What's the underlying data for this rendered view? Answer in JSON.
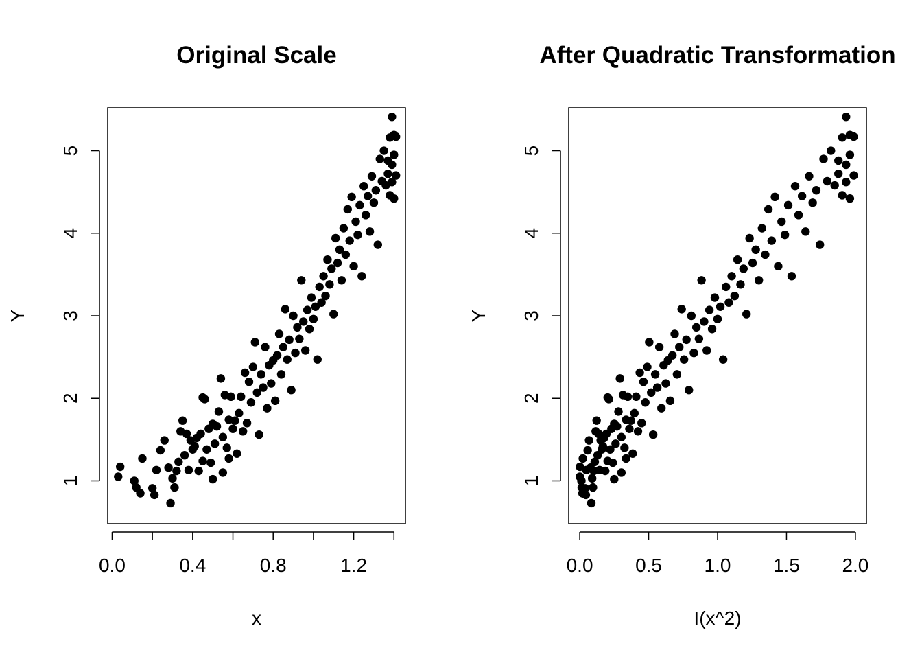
{
  "chart_data": [
    {
      "type": "scatter",
      "title": "Original Scale",
      "xlabel": "x",
      "ylabel": "Y",
      "xlim": [
        0.0,
        1.414
      ],
      "ylim": [
        0.66,
        5.5
      ],
      "xticks": [
        0.0,
        0.2,
        0.4,
        0.6,
        0.8,
        1.0,
        1.2,
        1.4
      ],
      "xtick_labels": [
        "0.0",
        "",
        "0.4",
        "",
        "0.8",
        "",
        "1.2",
        ""
      ],
      "yticks": [
        1,
        2,
        3,
        4,
        5
      ],
      "ytick_labels": [
        "1",
        "2",
        "3",
        "4",
        "5"
      ],
      "grid": false,
      "point_color": "#000000",
      "series": [
        {
          "points": [
            [
              0.03,
              1.05
            ],
            [
              0.04,
              1.17
            ],
            [
              0.11,
              1.0
            ],
            [
              0.12,
              0.92
            ],
            [
              0.14,
              0.85
            ],
            [
              0.15,
              1.27
            ],
            [
              0.2,
              0.91
            ],
            [
              0.21,
              0.83
            ],
            [
              0.22,
              1.13
            ],
            [
              0.24,
              1.37
            ],
            [
              0.26,
              1.49
            ],
            [
              0.28,
              1.16
            ],
            [
              0.29,
              0.73
            ],
            [
              0.3,
              1.03
            ],
            [
              0.31,
              0.92
            ],
            [
              0.32,
              1.12
            ],
            [
              0.33,
              1.23
            ],
            [
              0.34,
              1.6
            ],
            [
              0.35,
              1.73
            ],
            [
              0.36,
              1.31
            ],
            [
              0.37,
              1.57
            ],
            [
              0.38,
              1.13
            ],
            [
              0.39,
              1.49
            ],
            [
              0.4,
              1.38
            ],
            [
              0.41,
              1.42
            ],
            [
              0.42,
              1.52
            ],
            [
              0.43,
              1.12
            ],
            [
              0.44,
              1.57
            ],
            [
              0.45,
              2.01
            ],
            [
              0.45,
              1.24
            ],
            [
              0.46,
              1.99
            ],
            [
              0.47,
              1.38
            ],
            [
              0.48,
              1.63
            ],
            [
              0.49,
              1.22
            ],
            [
              0.5,
              1.69
            ],
            [
              0.5,
              1.02
            ],
            [
              0.51,
              1.45
            ],
            [
              0.52,
              1.66
            ],
            [
              0.53,
              1.84
            ],
            [
              0.54,
              2.24
            ],
            [
              0.55,
              1.53
            ],
            [
              0.55,
              1.1
            ],
            [
              0.56,
              2.04
            ],
            [
              0.57,
              1.4
            ],
            [
              0.58,
              1.74
            ],
            [
              0.58,
              1.27
            ],
            [
              0.59,
              2.02
            ],
            [
              0.6,
              1.63
            ],
            [
              0.61,
              1.73
            ],
            [
              0.62,
              1.33
            ],
            [
              0.63,
              1.82
            ],
            [
              0.64,
              2.02
            ],
            [
              0.65,
              1.6
            ],
            [
              0.66,
              2.31
            ],
            [
              0.67,
              1.7
            ],
            [
              0.68,
              2.2
            ],
            [
              0.69,
              1.95
            ],
            [
              0.7,
              2.38
            ],
            [
              0.71,
              2.68
            ],
            [
              0.72,
              2.07
            ],
            [
              0.73,
              1.56
            ],
            [
              0.74,
              2.29
            ],
            [
              0.75,
              2.13
            ],
            [
              0.76,
              2.62
            ],
            [
              0.77,
              1.88
            ],
            [
              0.78,
              2.4
            ],
            [
              0.79,
              2.18
            ],
            [
              0.8,
              2.46
            ],
            [
              0.81,
              1.97
            ],
            [
              0.82,
              2.52
            ],
            [
              0.83,
              2.78
            ],
            [
              0.84,
              2.29
            ],
            [
              0.85,
              2.62
            ],
            [
              0.86,
              3.08
            ],
            [
              0.87,
              2.47
            ],
            [
              0.88,
              2.71
            ],
            [
              0.89,
              2.1
            ],
            [
              0.9,
              3.0
            ],
            [
              0.91,
              2.55
            ],
            [
              0.92,
              2.86
            ],
            [
              0.93,
              2.72
            ],
            [
              0.94,
              3.43
            ],
            [
              0.95,
              2.93
            ],
            [
              0.96,
              2.58
            ],
            [
              0.97,
              3.07
            ],
            [
              0.98,
              2.84
            ],
            [
              0.99,
              3.22
            ],
            [
              1.0,
              2.96
            ],
            [
              1.01,
              3.11
            ],
            [
              1.02,
              2.47
            ],
            [
              1.03,
              3.35
            ],
            [
              1.04,
              3.16
            ],
            [
              1.05,
              3.48
            ],
            [
              1.06,
              3.24
            ],
            [
              1.07,
              3.68
            ],
            [
              1.08,
              3.38
            ],
            [
              1.09,
              3.57
            ],
            [
              1.1,
              3.02
            ],
            [
              1.11,
              3.94
            ],
            [
              1.12,
              3.64
            ],
            [
              1.13,
              3.8
            ],
            [
              1.14,
              3.43
            ],
            [
              1.15,
              4.06
            ],
            [
              1.16,
              3.74
            ],
            [
              1.17,
              4.29
            ],
            [
              1.18,
              3.91
            ],
            [
              1.19,
              4.44
            ],
            [
              1.2,
              3.6
            ],
            [
              1.21,
              4.14
            ],
            [
              1.22,
              3.98
            ],
            [
              1.23,
              4.34
            ],
            [
              1.24,
              3.48
            ],
            [
              1.25,
              4.57
            ],
            [
              1.26,
              4.22
            ],
            [
              1.27,
              4.45
            ],
            [
              1.28,
              4.02
            ],
            [
              1.29,
              4.69
            ],
            [
              1.3,
              4.37
            ],
            [
              1.31,
              4.52
            ],
            [
              1.32,
              3.86
            ],
            [
              1.33,
              4.9
            ],
            [
              1.34,
              4.63
            ],
            [
              1.35,
              5.0
            ],
            [
              1.36,
              4.58
            ],
            [
              1.37,
              4.72
            ],
            [
              1.38,
              5.16
            ],
            [
              1.38,
              4.46
            ],
            [
              1.39,
              5.41
            ],
            [
              1.39,
              4.83
            ],
            [
              1.4,
              5.19
            ],
            [
              1.4,
              4.42
            ],
            [
              1.41,
              4.7
            ],
            [
              1.41,
              5.17
            ],
            [
              1.4,
              4.95
            ],
            [
              1.39,
              4.62
            ],
            [
              1.37,
              4.88
            ]
          ]
        }
      ]
    },
    {
      "type": "scatter",
      "title": "After Quadratic Transformation",
      "xlabel": "I(x^2)",
      "ylabel": "Y",
      "xlim": [
        0.0,
        2.0
      ],
      "ylim": [
        0.66,
        5.5
      ],
      "xticks": [
        0.0,
        0.5,
        1.0,
        1.5,
        2.0
      ],
      "xtick_labels": [
        "0.0",
        "0.5",
        "1.0",
        "1.5",
        "2.0"
      ],
      "yticks": [
        1,
        2,
        3,
        4,
        5
      ],
      "ytick_labels": [
        "1",
        "2",
        "3",
        "4",
        "5"
      ],
      "grid": false,
      "point_color": "#000000",
      "series": [
        {
          "x_from_squared": true
        }
      ]
    }
  ]
}
